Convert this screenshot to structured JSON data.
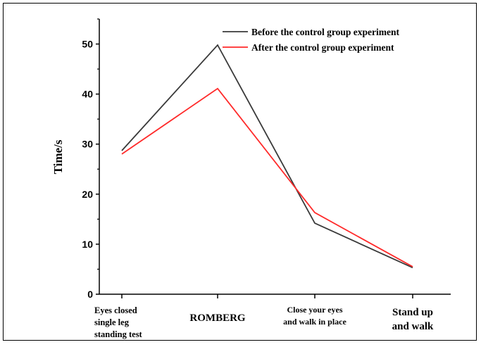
{
  "chart_data": {
    "type": "line",
    "ylabel": "Time/s",
    "xlabel": "",
    "ylim": [
      0,
      55
    ],
    "yticks": [
      "0",
      "10",
      "20",
      "30",
      "40",
      "50"
    ],
    "ytick_values": [
      0,
      10,
      20,
      30,
      40,
      50
    ],
    "categories": [
      [
        "Eyes closed",
        "single leg",
        "standing test"
      ],
      [
        "ROMBERG"
      ],
      [
        "Close your eyes",
        "and walk in place"
      ],
      [
        "Stand up",
        "and walk"
      ]
    ],
    "series": [
      {
        "name": "Before the control group experiment",
        "color": "#3a3a3a",
        "values": [
          28.7,
          49.8,
          14.2,
          5.3
        ]
      },
      {
        "name": "After the control group experiment",
        "color": "#ff2a2a",
        "values": [
          28.0,
          41.1,
          16.3,
          5.5
        ]
      }
    ],
    "legend_position": "top-right",
    "grid": false
  }
}
